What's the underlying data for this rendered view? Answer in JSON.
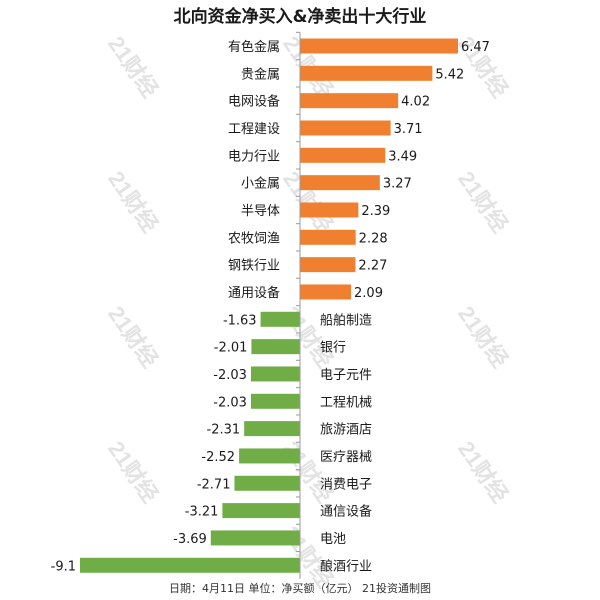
{
  "title": "北向资金净买入&净卖出十大行业",
  "footer": "日期：4月11日 单位：净买额（亿元） 21投资通制图",
  "watermark": "21财经",
  "colors": {
    "buy": "#f08030",
    "sell": "#70ad47",
    "axis": "#9a9a9a",
    "text": "#1a1a1a"
  },
  "chart_data": {
    "type": "bar",
    "orientation": "horizontal",
    "title": "北向资金净买入&净卖出十大行业",
    "unit": "亿元",
    "xlim": [
      -9.1,
      6.47
    ],
    "categories": [
      "有色金属",
      "贵金属",
      "电网设备",
      "工程建设",
      "电力行业",
      "小金属",
      "半导体",
      "农牧饲渔",
      "钢铁行业",
      "通用设备",
      "船舶制造",
      "银行",
      "电子元件",
      "工程机械",
      "旅游酒店",
      "医疗器械",
      "消费电子",
      "通信设备",
      "电池",
      "酿酒行业"
    ],
    "values": [
      6.47,
      5.42,
      4.02,
      3.71,
      3.49,
      3.27,
      2.39,
      2.28,
      2.27,
      2.09,
      -1.63,
      -2.01,
      -2.03,
      -2.03,
      -2.31,
      -2.52,
      -2.71,
      -3.21,
      -3.69,
      -9.1
    ],
    "value_labels": [
      "6.47",
      "5.42",
      "4.02",
      "3.71",
      "3.49",
      "3.27",
      "2.39",
      "2.28",
      "2.27",
      "2.09",
      "-1.63",
      "-2.01",
      "-2.03",
      "-2.03",
      "-2.31",
      "-2.52",
      "-2.71",
      "-3.21",
      "-3.69",
      "-9.1"
    ]
  }
}
